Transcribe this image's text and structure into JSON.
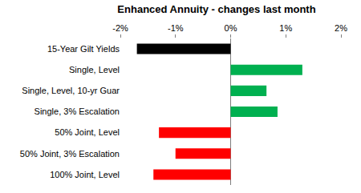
{
  "chart_data": {
    "type": "bar",
    "orientation": "horizontal",
    "title": "Enhanced Annuity - changes last month",
    "categories": [
      "15-Year Gilt Yields",
      "Single, Level",
      "Single, Level, 10-yr Guar",
      "Single, 3% Escalation",
      "50% Joint, Level",
      "50% Joint, 3% Escalation",
      "100% Joint, Level"
    ],
    "values": [
      -1.7,
      1.3,
      0.65,
      0.85,
      -1.3,
      -1.0,
      -1.4
    ],
    "colors": [
      "#000000",
      "#00b050",
      "#00b050",
      "#00b050",
      "#ff0000",
      "#ff0000",
      "#ff0000"
    ],
    "xlim": [
      -2,
      2
    ],
    "xticks": [
      {
        "value": -2,
        "label": "-2%"
      },
      {
        "value": -1,
        "label": "-1%"
      },
      {
        "value": 0,
        "label": "0%"
      },
      {
        "value": 1,
        "label": "1%"
      },
      {
        "value": 2,
        "label": "2%"
      }
    ],
    "grid": false
  }
}
